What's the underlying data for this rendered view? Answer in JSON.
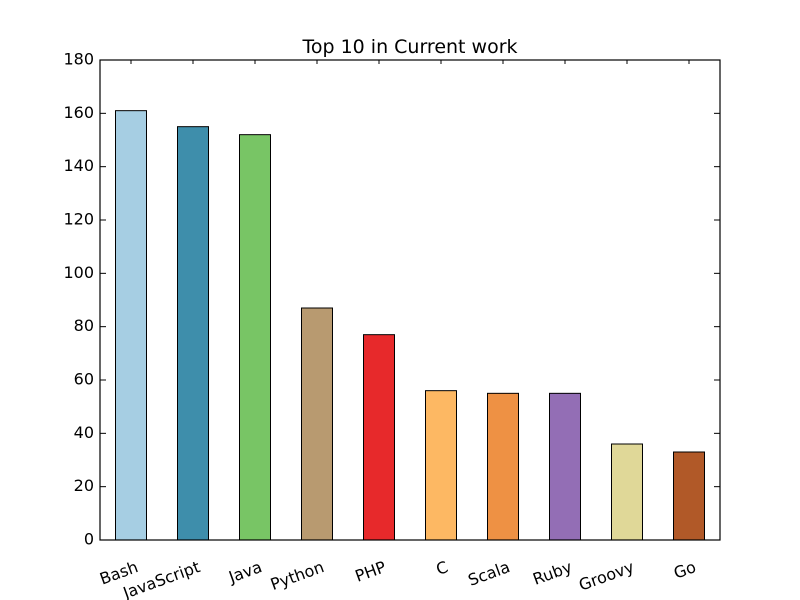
{
  "chart_data": {
    "type": "bar",
    "title": "Top 10 in Current work",
    "xlabel": "",
    "ylabel": "",
    "categories": [
      "Bash",
      "JavaScript",
      "Java",
      "Python",
      "PHP",
      "C",
      "Scala",
      "Ruby",
      "Groovy",
      "Go"
    ],
    "values": [
      161,
      155,
      152,
      87,
      77,
      56,
      55,
      55,
      36,
      33
    ],
    "colors": [
      "#a6cee3",
      "#3e8eab",
      "#78c565",
      "#b89a70",
      "#e7292b",
      "#fdb863",
      "#ee9144",
      "#936eb5",
      "#e0d898",
      "#b15928"
    ],
    "ylim": [
      0,
      180
    ],
    "yticks": [
      "0",
      "20",
      "40",
      "60",
      "80",
      "100",
      "120",
      "140",
      "160",
      "180"
    ],
    "grid": false,
    "legend": "none"
  }
}
